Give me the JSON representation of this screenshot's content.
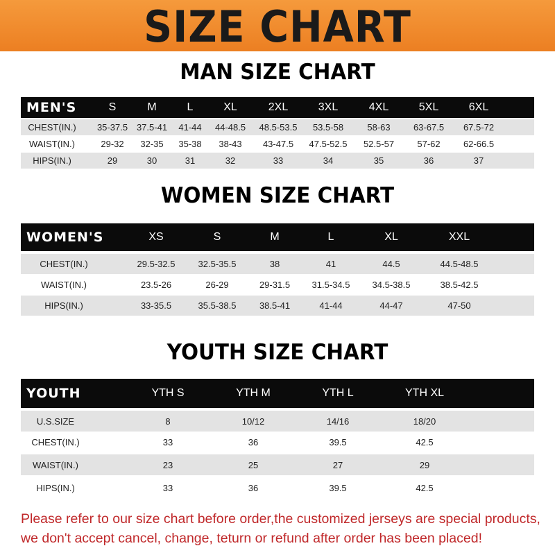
{
  "banner_title": "SIZE CHART",
  "men": {
    "title": "MAN SIZE CHART",
    "header": [
      "MEN'S",
      "S",
      "M",
      "L",
      "XL",
      "2XL",
      "3XL",
      "4XL",
      "5XL",
      "6XL"
    ],
    "rows": [
      [
        "CHEST(IN.)",
        "35-37.5",
        "37.5-41",
        "41-44",
        "44-48.5",
        "48.5-53.5",
        "53.5-58",
        "58-63",
        "63-67.5",
        "67.5-72"
      ],
      [
        "WAIST(IN.)",
        "29-32",
        "32-35",
        "35-38",
        "38-43",
        "43-47.5",
        "47.5-52.5",
        "52.5-57",
        "57-62",
        "62-66.5"
      ],
      [
        "HIPS(IN.)",
        "29",
        "30",
        "31",
        "32",
        "33",
        "34",
        "35",
        "36",
        "37"
      ]
    ]
  },
  "women": {
    "title": "WOMEN SIZE CHART",
    "header": [
      "WOMEN'S",
      "XS",
      "S",
      "M",
      "L",
      "XL",
      "XXL"
    ],
    "rows": [
      [
        "CHEST(IN.)",
        "29.5-32.5",
        "32.5-35.5",
        "38",
        "41",
        "44.5",
        "44.5-48.5"
      ],
      [
        "WAIST(IN.)",
        "23.5-26",
        "26-29",
        "29-31.5",
        "31.5-34.5",
        "34.5-38.5",
        "38.5-42.5"
      ],
      [
        "HIPS(IN.)",
        "33-35.5",
        "35.5-38.5",
        "38.5-41",
        "41-44",
        "44-47",
        "47-50"
      ]
    ]
  },
  "youth": {
    "title": "YOUTH SIZE CHART",
    "header": [
      "YOUTH",
      "YTH S",
      "YTH M",
      "YTH L",
      "YTH XL"
    ],
    "rows": [
      [
        "U.S.SIZE",
        "8",
        "10/12",
        "14/16",
        "18/20"
      ],
      [
        "CHEST(IN.)",
        "33",
        "36",
        "39.5",
        "42.5"
      ],
      [
        "WAIST(IN.)",
        "23",
        "25",
        "27",
        "29"
      ],
      [
        "HIPS(IN.)",
        "33",
        "36",
        "39.5",
        "42.5"
      ]
    ]
  },
  "notice": {
    "line1": "Please refer to our size chart before order,the customized jerseys are special products,",
    "line2": "we don't accept cancel, change, teturn or refund after order has been placed!"
  },
  "colors": {
    "banner": "#ef8a2c",
    "header_row": "#0b0b0b",
    "stripe": "#e3e3e3",
    "notice": "#c0282a"
  }
}
